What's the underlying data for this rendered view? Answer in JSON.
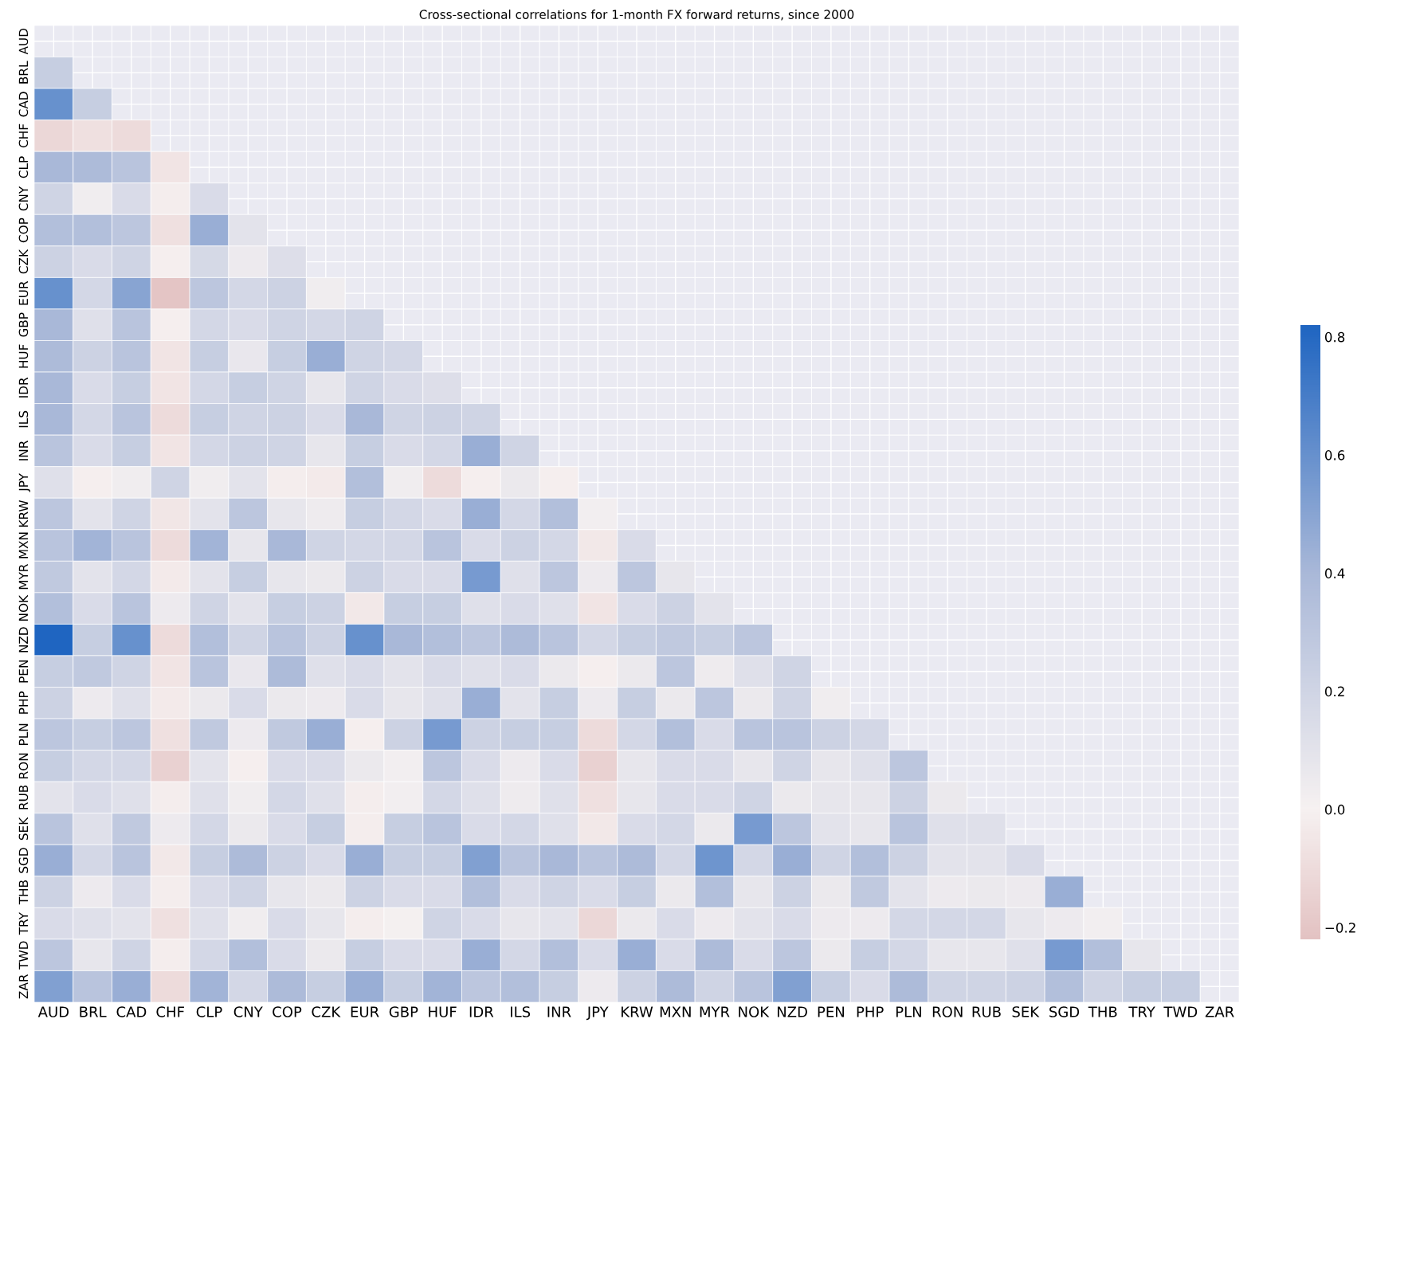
{
  "chart_data": {
    "type": "heatmap",
    "title": "Cross-sectional correlations for 1-month FX forward returns, since 2000",
    "categories": [
      "AUD",
      "BRL",
      "CAD",
      "CHF",
      "CLP",
      "CNY",
      "COP",
      "CZK",
      "EUR",
      "GBP",
      "HUF",
      "IDR",
      "ILS",
      "INR",
      "JPY",
      "KRW",
      "MXN",
      "MYR",
      "NOK",
      "NZD",
      "PEN",
      "PHP",
      "PLN",
      "RON",
      "RUB",
      "SEK",
      "SGD",
      "THB",
      "TRY",
      "TWD",
      "ZAR"
    ],
    "y_categories": [
      "AUD",
      "BRL",
      "CAD",
      "CHF",
      "CLP",
      "CNY",
      "COP",
      "CZK",
      "EUR",
      "GBP",
      "HUF",
      "IDR",
      "ILS",
      "INR",
      "JPY",
      "KRW",
      "MXN",
      "MYR",
      "NOK",
      "NZD",
      "PEN",
      "PHP",
      "PLN",
      "RON",
      "RUB",
      "SEK",
      "SGD",
      "THB",
      "TRY",
      "TWD",
      "ZAR"
    ],
    "cells": [
      [
        null,
        null,
        null,
        null,
        null,
        null,
        null,
        null,
        null,
        null,
        null,
        null,
        null,
        null,
        null,
        null,
        null,
        null,
        null,
        null,
        null,
        null,
        null,
        null,
        null,
        null,
        null,
        null,
        null,
        null,
        null
      ],
      [
        0.25,
        null,
        null,
        null,
        null,
        null,
        null,
        null,
        null,
        null,
        null,
        null,
        null,
        null,
        null,
        null,
        null,
        null,
        null,
        null,
        null,
        null,
        null,
        null,
        null,
        null,
        null,
        null,
        null,
        null,
        null
      ],
      [
        0.6,
        0.25,
        null,
        null,
        null,
        null,
        null,
        null,
        null,
        null,
        null,
        null,
        null,
        null,
        null,
        null,
        null,
        null,
        null,
        null,
        null,
        null,
        null,
        null,
        null,
        null,
        null,
        null,
        null,
        null,
        null
      ],
      [
        -0.12,
        -0.08,
        -0.1,
        null,
        null,
        null,
        null,
        null,
        null,
        null,
        null,
        null,
        null,
        null,
        null,
        null,
        null,
        null,
        null,
        null,
        null,
        null,
        null,
        null,
        null,
        null,
        null,
        null,
        null,
        null,
        null
      ],
      [
        0.4,
        0.38,
        0.32,
        -0.06,
        null,
        null,
        null,
        null,
        null,
        null,
        null,
        null,
        null,
        null,
        null,
        null,
        null,
        null,
        null,
        null,
        null,
        null,
        null,
        null,
        null,
        null,
        null,
        null,
        null,
        null,
        null
      ],
      [
        0.2,
        0.03,
        0.15,
        -0.02,
        0.15,
        null,
        null,
        null,
        null,
        null,
        null,
        null,
        null,
        null,
        null,
        null,
        null,
        null,
        null,
        null,
        null,
        null,
        null,
        null,
        null,
        null,
        null,
        null,
        null,
        null,
        null
      ],
      [
        0.35,
        0.35,
        0.3,
        -0.08,
        0.45,
        0.1,
        null,
        null,
        null,
        null,
        null,
        null,
        null,
        null,
        null,
        null,
        null,
        null,
        null,
        null,
        null,
        null,
        null,
        null,
        null,
        null,
        null,
        null,
        null,
        null,
        null
      ],
      [
        0.22,
        0.15,
        0.2,
        -0.01,
        0.17,
        0.05,
        0.13,
        null,
        null,
        null,
        null,
        null,
        null,
        null,
        null,
        null,
        null,
        null,
        null,
        null,
        null,
        null,
        null,
        null,
        null,
        null,
        null,
        null,
        null,
        null,
        null
      ],
      [
        0.6,
        0.18,
        0.5,
        -0.2,
        0.3,
        0.18,
        0.22,
        0.03,
        null,
        null,
        null,
        null,
        null,
        null,
        null,
        null,
        null,
        null,
        null,
        null,
        null,
        null,
        null,
        null,
        null,
        null,
        null,
        null,
        null,
        null,
        null
      ],
      [
        0.4,
        0.12,
        0.32,
        -0.01,
        0.18,
        0.15,
        0.2,
        0.18,
        0.2,
        null,
        null,
        null,
        null,
        null,
        null,
        null,
        null,
        null,
        null,
        null,
        null,
        null,
        null,
        null,
        null,
        null,
        null,
        null,
        null,
        null,
        null
      ],
      [
        0.38,
        0.22,
        0.32,
        -0.06,
        0.25,
        0.07,
        0.25,
        0.45,
        0.2,
        0.18,
        null,
        null,
        null,
        null,
        null,
        null,
        null,
        null,
        null,
        null,
        null,
        null,
        null,
        null,
        null,
        null,
        null,
        null,
        null,
        null,
        null
      ],
      [
        0.4,
        0.15,
        0.25,
        -0.06,
        0.18,
        0.25,
        0.2,
        0.08,
        0.2,
        0.15,
        0.13,
        null,
        null,
        null,
        null,
        null,
        null,
        null,
        null,
        null,
        null,
        null,
        null,
        null,
        null,
        null,
        null,
        null,
        null,
        null,
        null
      ],
      [
        0.4,
        0.18,
        0.32,
        -0.1,
        0.25,
        0.2,
        0.22,
        0.15,
        0.4,
        0.2,
        0.22,
        0.2,
        null,
        null,
        null,
        null,
        null,
        null,
        null,
        null,
        null,
        null,
        null,
        null,
        null,
        null,
        null,
        null,
        null,
        null,
        null
      ],
      [
        0.32,
        0.15,
        0.25,
        -0.06,
        0.18,
        0.22,
        0.2,
        0.08,
        0.25,
        0.15,
        0.18,
        0.45,
        0.2,
        null,
        null,
        null,
        null,
        null,
        null,
        null,
        null,
        null,
        null,
        null,
        null,
        null,
        null,
        null,
        null,
        null,
        null
      ],
      [
        0.12,
        -0.01,
        0.03,
        0.2,
        0.03,
        0.1,
        -0.02,
        -0.03,
        0.35,
        0.03,
        -0.1,
        -0.01,
        0.06,
        -0.01,
        null,
        null,
        null,
        null,
        null,
        null,
        null,
        null,
        null,
        null,
        null,
        null,
        null,
        null,
        null,
        null,
        null
      ],
      [
        0.3,
        0.1,
        0.2,
        -0.05,
        0.1,
        0.3,
        0.08,
        0.04,
        0.25,
        0.18,
        0.15,
        0.45,
        0.18,
        0.35,
        0.02,
        null,
        null,
        null,
        null,
        null,
        null,
        null,
        null,
        null,
        null,
        null,
        null,
        null,
        null,
        null,
        null
      ],
      [
        0.32,
        0.42,
        0.32,
        -0.1,
        0.42,
        0.08,
        0.4,
        0.2,
        0.18,
        0.18,
        0.32,
        0.15,
        0.22,
        0.18,
        -0.04,
        0.15,
        null,
        null,
        null,
        null,
        null,
        null,
        null,
        null,
        null,
        null,
        null,
        null,
        null,
        null,
        null
      ],
      [
        0.28,
        0.1,
        0.18,
        -0.03,
        0.1,
        0.25,
        0.08,
        0.06,
        0.22,
        0.15,
        0.15,
        0.55,
        0.12,
        0.3,
        0.05,
        0.3,
        0.08,
        null,
        null,
        null,
        null,
        null,
        null,
        null,
        null,
        null,
        null,
        null,
        null,
        null,
        null
      ],
      [
        0.35,
        0.15,
        0.32,
        0.05,
        0.2,
        0.1,
        0.25,
        0.22,
        -0.04,
        0.25,
        0.25,
        0.12,
        0.15,
        0.12,
        -0.06,
        0.15,
        0.22,
        0.1,
        null,
        null,
        null,
        null,
        null,
        null,
        null,
        null,
        null,
        null,
        null,
        null,
        null
      ],
      [
        0.82,
        0.25,
        0.6,
        -0.1,
        0.35,
        0.2,
        0.32,
        0.22,
        0.6,
        0.4,
        0.35,
        0.3,
        0.38,
        0.32,
        0.18,
        0.25,
        0.28,
        0.25,
        0.3,
        null,
        null,
        null,
        null,
        null,
        null,
        null,
        null,
        null,
        null,
        null,
        null
      ],
      [
        0.25,
        0.28,
        0.2,
        -0.06,
        0.32,
        0.07,
        0.38,
        0.12,
        0.15,
        0.1,
        0.15,
        0.12,
        0.15,
        0.06,
        -0.01,
        0.06,
        0.3,
        0.04,
        0.12,
        0.2,
        null,
        null,
        null,
        null,
        null,
        null,
        null,
        null,
        null,
        null,
        null
      ],
      [
        0.22,
        0.05,
        0.12,
        -0.03,
        0.06,
        0.15,
        0.06,
        0.05,
        0.15,
        0.08,
        0.12,
        0.45,
        0.1,
        0.25,
        0.05,
        0.25,
        0.06,
        0.3,
        0.06,
        0.2,
        0.03,
        null,
        null,
        null,
        null,
        null,
        null,
        null,
        null,
        null,
        null
      ],
      [
        0.3,
        0.25,
        0.3,
        -0.08,
        0.28,
        0.05,
        0.28,
        0.45,
        -0.01,
        0.22,
        0.55,
        0.22,
        0.25,
        0.25,
        -0.1,
        0.18,
        0.35,
        0.15,
        0.32,
        0.32,
        0.22,
        0.18,
        null,
        null,
        null,
        null,
        null,
        null,
        null,
        null,
        null
      ],
      [
        0.25,
        0.18,
        0.18,
        -0.15,
        0.1,
        -0.01,
        0.15,
        0.15,
        0.06,
        0.02,
        0.3,
        0.15,
        0.05,
        0.15,
        -0.15,
        0.08,
        0.15,
        0.15,
        0.08,
        0.2,
        0.08,
        0.12,
        0.3,
        null,
        null,
        null,
        null,
        null,
        null,
        null,
        null
      ],
      [
        0.1,
        0.15,
        0.12,
        -0.02,
        0.12,
        0.03,
        0.18,
        0.12,
        -0.02,
        0.02,
        0.18,
        0.12,
        0.04,
        0.12,
        -0.08,
        0.08,
        0.15,
        0.15,
        0.2,
        0.06,
        0.08,
        0.08,
        0.22,
        0.06,
        null,
        null,
        null,
        null,
        null,
        null,
        null
      ],
      [
        0.32,
        0.12,
        0.28,
        0.05,
        0.18,
        0.06,
        0.15,
        0.25,
        -0.02,
        0.25,
        0.32,
        0.15,
        0.18,
        0.12,
        -0.04,
        0.15,
        0.18,
        0.06,
        0.55,
        0.3,
        0.1,
        0.08,
        0.32,
        0.12,
        0.12,
        null,
        null,
        null,
        null,
        null,
        null
      ],
      [
        0.45,
        0.18,
        0.32,
        -0.04,
        0.25,
        0.38,
        0.22,
        0.15,
        0.45,
        0.25,
        0.25,
        0.52,
        0.32,
        0.4,
        0.32,
        0.38,
        0.18,
        0.58,
        0.18,
        0.45,
        0.2,
        0.35,
        0.22,
        0.1,
        0.1,
        0.15,
        null,
        null,
        null,
        null,
        null
      ],
      [
        0.22,
        0.05,
        0.15,
        -0.02,
        0.15,
        0.2,
        0.08,
        0.06,
        0.22,
        0.15,
        0.15,
        0.35,
        0.15,
        0.2,
        0.15,
        0.25,
        0.06,
        0.35,
        0.08,
        0.22,
        0.06,
        0.28,
        0.1,
        0.05,
        0.06,
        0.05,
        0.45,
        null,
        null,
        null,
        null
      ],
      [
        0.15,
        0.12,
        0.1,
        -0.08,
        0.12,
        0.03,
        0.15,
        0.08,
        -0.02,
        0.01,
        0.2,
        0.15,
        0.08,
        0.1,
        -0.12,
        0.06,
        0.15,
        0.05,
        0.1,
        0.15,
        0.05,
        0.05,
        0.18,
        0.18,
        0.18,
        0.08,
        0.05,
        0.02,
        null,
        null,
        null
      ],
      [
        0.3,
        0.08,
        0.2,
        -0.02,
        0.18,
        0.35,
        0.15,
        0.06,
        0.25,
        0.15,
        0.15,
        0.45,
        0.18,
        0.35,
        0.15,
        0.45,
        0.15,
        0.38,
        0.15,
        0.3,
        0.06,
        0.25,
        0.18,
        0.08,
        0.08,
        0.12,
        0.55,
        0.35,
        0.08,
        null,
        null
      ],
      [
        0.52,
        0.32,
        0.45,
        -0.1,
        0.42,
        0.18,
        0.38,
        0.25,
        0.45,
        0.25,
        0.42,
        0.3,
        0.35,
        0.25,
        0.05,
        0.22,
        0.38,
        0.2,
        0.32,
        0.52,
        0.25,
        0.15,
        0.38,
        0.2,
        0.2,
        0.22,
        0.35,
        0.2,
        0.25,
        0.25,
        null
      ]
    ],
    "clim": [
      -0.22,
      0.82
    ],
    "cticks": [
      {
        "value": -0.2,
        "label": "−0.2"
      },
      {
        "value": 0.0,
        "label": "0.0"
      },
      {
        "value": 0.2,
        "label": "0.2"
      },
      {
        "value": 0.4,
        "label": "0.4"
      },
      {
        "value": 0.6,
        "label": "0.6"
      },
      {
        "value": 0.8,
        "label": "0.8"
      }
    ],
    "grid": true
  }
}
